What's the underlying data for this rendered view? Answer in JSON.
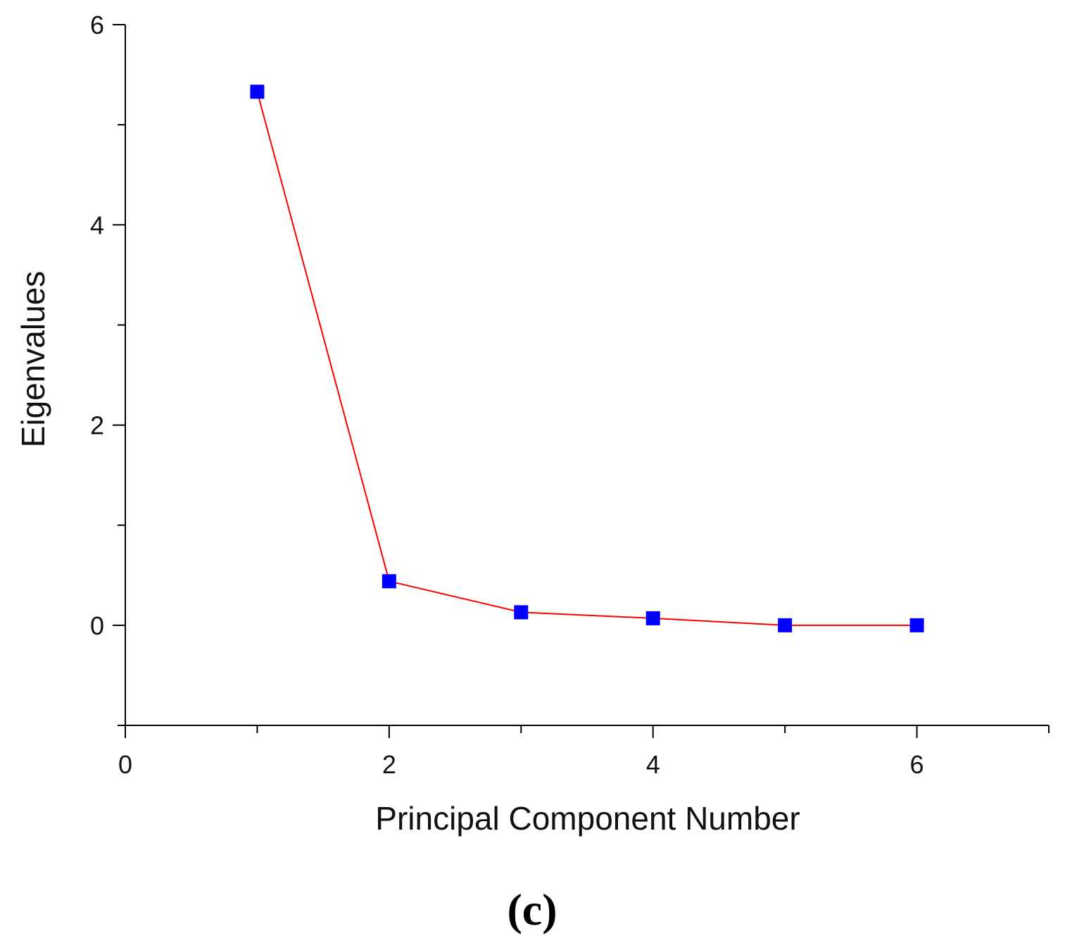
{
  "chart_data": {
    "type": "line",
    "title": "",
    "xlabel": "Principal Component Number",
    "ylabel": "Eigenvalues",
    "xlim": [
      0,
      7
    ],
    "ylim": [
      -1,
      6
    ],
    "x_major_ticks": [
      0,
      2,
      4,
      6
    ],
    "x_minor_ticks": [
      1,
      3,
      5,
      7
    ],
    "y_major_ticks": [
      0,
      2,
      4,
      6
    ],
    "y_minor_ticks": [
      -1,
      1,
      3,
      5
    ],
    "x_tick_labels": [
      "0",
      "2",
      "4",
      "6"
    ],
    "y_tick_labels": [
      "0",
      "2",
      "4",
      "6"
    ],
    "grid": false,
    "legend": "none",
    "series": [
      {
        "x": [
          1,
          2,
          3,
          4,
          5,
          6
        ],
        "values": [
          5.33,
          0.44,
          0.13,
          0.07,
          0.0,
          0.0
        ],
        "line_color": "#ff0000",
        "marker": "square",
        "marker_color": "#0000ff"
      }
    ]
  },
  "caption": "(c)"
}
